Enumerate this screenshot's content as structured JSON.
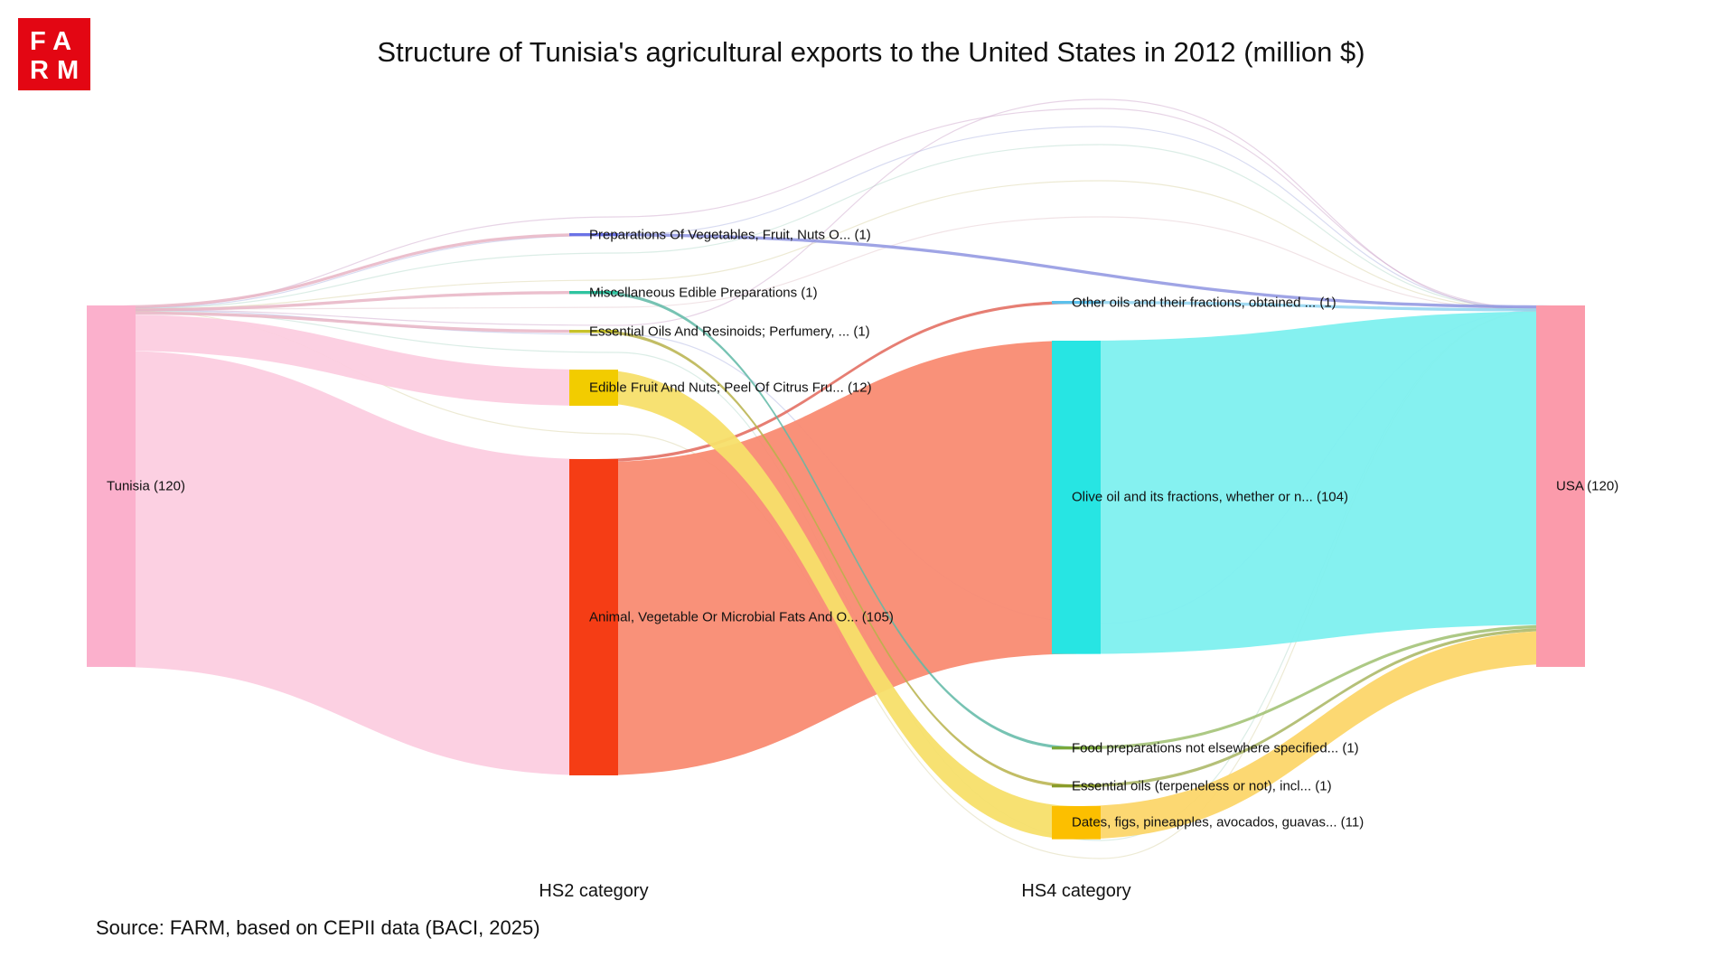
{
  "logo": {
    "line1": "FA",
    "line2": "RM",
    "text": "FARM"
  },
  "title": "Structure of Tunisia's agricultural exports to the United States in 2012 (million $)",
  "source": "Source: FARM, based on CEPII data (BACI, 2025)",
  "chart_data": {
    "type": "sankey",
    "title": "Structure of Tunisia's agricultural exports to the United States in 2012 (million $)",
    "unit": "million $",
    "column_labels": [
      "HS2 category",
      "HS4 category"
    ],
    "nodes": [
      {
        "id": "tunisia",
        "label": "Tunisia (120)",
        "value": 120,
        "color": "#fbb0cc"
      },
      {
        "id": "prep",
        "label": "Preparations Of Vegetables, Fruit, Nuts O... (1)",
        "value": 1,
        "color": "#6a72e6"
      },
      {
        "id": "misc",
        "label": "Miscellaneous Edible Preparations (1)",
        "value": 1,
        "color": "#2ec4a0"
      },
      {
        "id": "ess",
        "label": "Essential Oils And Resinoids; Perfumery, ... (1)",
        "value": 1,
        "color": "#c7c22a"
      },
      {
        "id": "fruit",
        "label": "Edible Fruit And Nuts; Peel Of Citrus Fru... (12)",
        "value": 12,
        "color": "#f2cc00"
      },
      {
        "id": "animal",
        "label": "Animal, Vegetable Or Microbial Fats And O... (105)",
        "value": 105,
        "color": "#f53d15"
      },
      {
        "id": "other",
        "label": "Other oils and their fractions, obtained ... (1)",
        "value": 1,
        "color": "#5bc0eb"
      },
      {
        "id": "olive",
        "label": "Olive oil and its fractions, whether or n... (104)",
        "value": 104,
        "color": "#27e5e3"
      },
      {
        "id": "food",
        "label": "Food preparations not elsewhere specified... (1)",
        "value": 1,
        "color": "#7aa83b"
      },
      {
        "id": "essoil",
        "label": "Essential oils (terpeneless or not), incl... (1)",
        "value": 1,
        "color": "#8a9c2a"
      },
      {
        "id": "dates",
        "label": "Dates, figs, pineapples, avocados, guavas... (11)",
        "value": 11,
        "color": "#fcbf00"
      },
      {
        "id": "usa",
        "label": "USA (120)",
        "value": 120,
        "color": "#fb9bab"
      }
    ],
    "links": [
      {
        "source": "tunisia",
        "target": "prep",
        "value": 1,
        "color": "#e8b4c4"
      },
      {
        "source": "tunisia",
        "target": "misc",
        "value": 1,
        "color": "#e8b4c4"
      },
      {
        "source": "tunisia",
        "target": "ess",
        "value": 1,
        "color": "#e8b4c4"
      },
      {
        "source": "tunisia",
        "target": "fruit",
        "value": 12,
        "color": "#fccde0"
      },
      {
        "source": "tunisia",
        "target": "animal",
        "value": 105,
        "color": "#fccde0"
      },
      {
        "source": "prep",
        "target": "usa",
        "value": 1,
        "color": "#8e94e0"
      },
      {
        "source": "animal",
        "target": "other",
        "value": 1,
        "color": "#e2675a"
      },
      {
        "source": "animal",
        "target": "olive",
        "value": 104,
        "color": "#f98b72"
      },
      {
        "source": "misc",
        "target": "food",
        "value": 1,
        "color": "#5fb8a6"
      },
      {
        "source": "ess",
        "target": "essoil",
        "value": 1,
        "color": "#b7b24a"
      },
      {
        "source": "fruit",
        "target": "dates",
        "value": 11,
        "color": "#f7df6a"
      },
      {
        "source": "other",
        "target": "usa",
        "value": 1,
        "color": "#8fd3f0"
      },
      {
        "source": "olive",
        "target": "usa",
        "value": 104,
        "color": "#7ef0ef"
      },
      {
        "source": "food",
        "target": "usa",
        "value": 1,
        "color": "#9fc070"
      },
      {
        "source": "essoil",
        "target": "usa",
        "value": 1,
        "color": "#a8b560"
      },
      {
        "source": "dates",
        "target": "usa",
        "value": 11,
        "color": "#fcd66a"
      }
    ]
  }
}
